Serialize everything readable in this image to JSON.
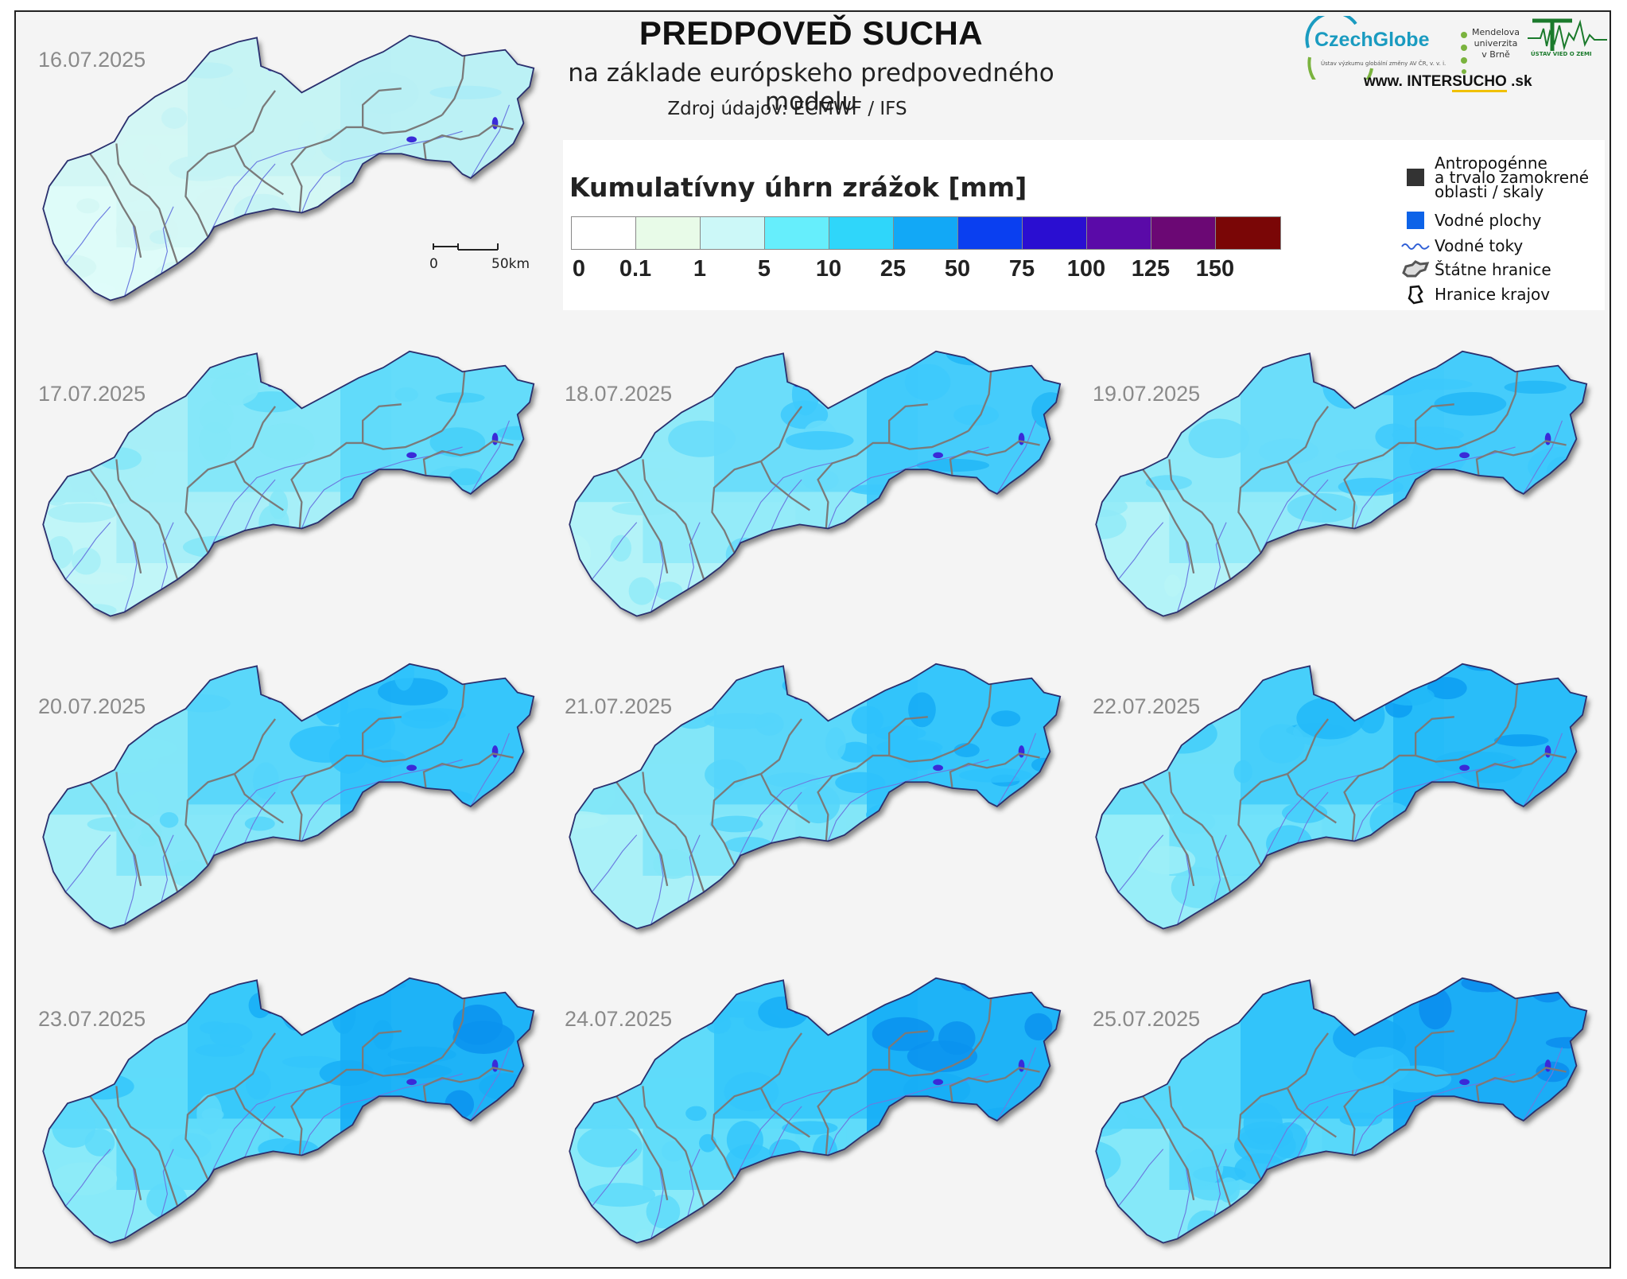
{
  "header": {
    "title": "PREDPOVEĎ SUCHA",
    "subtitle": "na základe európskeho predpovedného modelu",
    "source": "Zdroj údajov: ECMWF / IFS"
  },
  "logos": {
    "czechglobe": "CzechGlobe",
    "czechglobe_sub": "Ústav výzkumu globální změny AV ČR, v. v. i.",
    "mendel": [
      "Mendelova",
      "univerzita",
      "v Brně"
    ],
    "ustav": "ÚSTAV VIED O ZEMI",
    "website_prefix": "www. INTER",
    "website_em": "SUCHO",
    "website_suffix": " .sk"
  },
  "legend": {
    "title": "Kumulatívny úhrn zrážok [mm]",
    "bins": [
      {
        "label": "0",
        "color": "#ffffff"
      },
      {
        "label": "0.1",
        "color": "#e8fbe8"
      },
      {
        "label": "1",
        "color": "#ccf8f8"
      },
      {
        "label": "5",
        "color": "#66eefc"
      },
      {
        "label": "10",
        "color": "#2fd6fa"
      },
      {
        "label": "25",
        "color": "#12a8f6"
      },
      {
        "label": "50",
        "color": "#0a3ff0"
      },
      {
        "label": "75",
        "color": "#2a0ed1"
      },
      {
        "label": "100",
        "color": "#5a0aa8"
      },
      {
        "label": "125",
        "color": "#6b0874"
      },
      {
        "label": "150",
        "color": "#7a0606"
      }
    ],
    "items": [
      {
        "label_lines": [
          "Antropogénne",
          "a trvalo zamokrené",
          "oblasti / skaly"
        ],
        "symbol": "dark-square",
        "color": "#333333"
      },
      {
        "label_lines": [
          "Vodné plochy"
        ],
        "symbol": "blue-square",
        "color": "#0d63e8"
      },
      {
        "label_lines": [
          "Vodné toky"
        ],
        "symbol": "river-line",
        "color": "#2f5fd6"
      },
      {
        "label_lines": [
          "Štátne hranice"
        ],
        "symbol": "state-border-icon",
        "color": "#555555"
      },
      {
        "label_lines": [
          "Hranice krajov"
        ],
        "symbol": "region-border-icon",
        "color": "#111111"
      }
    ]
  },
  "scale_bar": {
    "start": "0",
    "end": "50km"
  },
  "panels": [
    {
      "date": "16.07.2025",
      "intensity": 0
    },
    {
      "date": "17.07.2025",
      "intensity": 1
    },
    {
      "date": "18.07.2025",
      "intensity": 2
    },
    {
      "date": "19.07.2025",
      "intensity": 2
    },
    {
      "date": "20.07.2025",
      "intensity": 3
    },
    {
      "date": "21.07.2025",
      "intensity": 3
    },
    {
      "date": "22.07.2025",
      "intensity": 4
    },
    {
      "date": "23.07.2025",
      "intensity": 5
    },
    {
      "date": "24.07.2025",
      "intensity": 5
    },
    {
      "date": "25.07.2025",
      "intensity": 6
    }
  ]
}
